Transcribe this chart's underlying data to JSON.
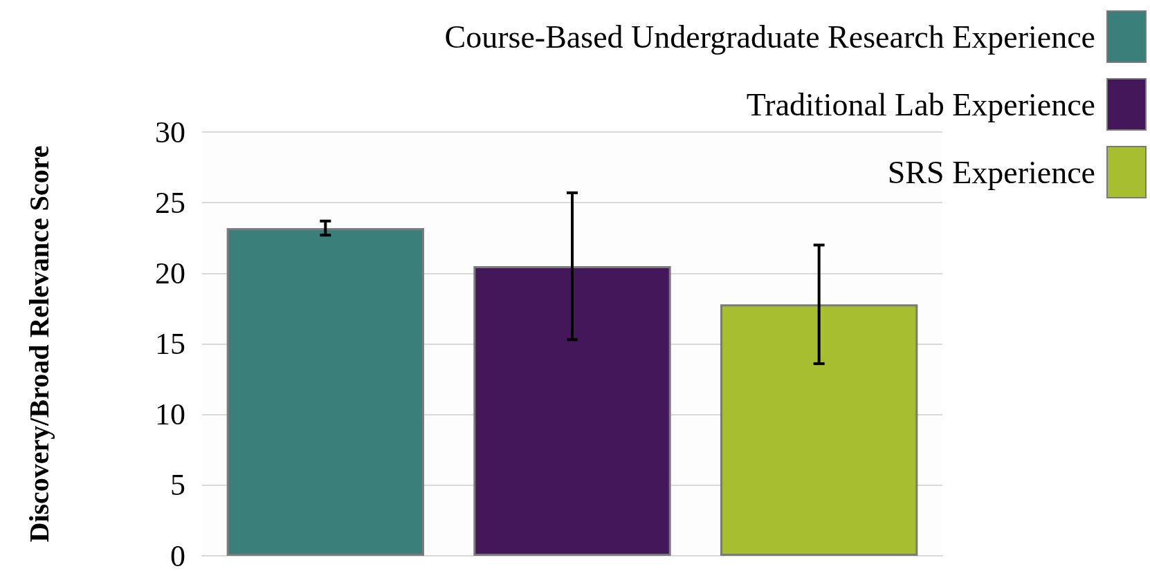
{
  "chart_data": {
    "type": "bar",
    "ylabel": "Discovery/Broad Relevance Score",
    "categories": [
      null,
      null,
      null
    ],
    "series": [
      {
        "name": "Course-Based Undergraduate Research Experience",
        "color": "#3a7f7a",
        "values": [
          23.2,
          null,
          null
        ],
        "errors": [
          0.5,
          null,
          null
        ]
      },
      {
        "name": "Traditional Lab Experience",
        "color": "#44175a",
        "values": [
          null,
          20.5,
          null
        ],
        "errors": [
          null,
          5.2,
          null
        ]
      },
      {
        "name": "SRS Experience",
        "color": "#a7bf2e",
        "values": [
          null,
          null,
          17.8
        ],
        "errors": [
          null,
          null,
          4.2
        ]
      }
    ],
    "ylim": [
      0,
      30
    ],
    "yticks": [
      0,
      5,
      10,
      15,
      20,
      25,
      30
    ],
    "grid": "y",
    "legend": "top right"
  }
}
